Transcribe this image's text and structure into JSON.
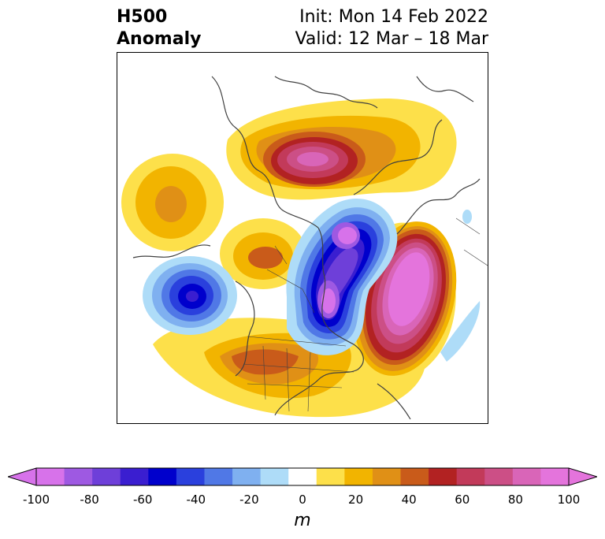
{
  "header": {
    "left_line1": "H500",
    "left_line2": "Anomaly",
    "right_line1": "Init: Mon 14 Feb 2022",
    "right_line2": "Valid: 12 Mar – 18 Mar"
  },
  "colorbar": {
    "unit_label": "m",
    "ticks": [
      "-100",
      "-80",
      "-60",
      "-40",
      "-20",
      "0",
      "20",
      "40",
      "60",
      "80",
      "100"
    ],
    "levels": [
      -100,
      -90,
      -80,
      -70,
      -60,
      -50,
      -40,
      -30,
      -20,
      -10,
      10,
      20,
      30,
      40,
      50,
      60,
      70,
      80,
      90,
      100
    ],
    "colors": [
      "#d772ea",
      "#9e59e2",
      "#6e3fd9",
      "#3a1ed0",
      "#0000cc",
      "#2a40dd",
      "#5078e6",
      "#7fb0f0",
      "#aedcf8",
      "#ffffff",
      "#fde04a",
      "#f2b400",
      "#e09016",
      "#c95b1a",
      "#b22222",
      "#c23a5a",
      "#cc4f86",
      "#d965b8",
      "#e474dc"
    ]
  },
  "anomalies": [
    {
      "name": "greenland-ridge",
      "sign": "positive",
      "peak": 75
    },
    {
      "name": "hudson-bay-trough",
      "sign": "negative",
      "peak": -100
    },
    {
      "name": "north-atlantic-ridge",
      "sign": "positive",
      "peak": 100
    },
    {
      "name": "gulf-of-alaska-trough",
      "sign": "negative",
      "peak": -70
    },
    {
      "name": "bering-ridge",
      "sign": "positive",
      "peak": 40
    },
    {
      "name": "southwest-us-ridge",
      "sign": "positive",
      "peak": 50
    },
    {
      "name": "alaska-ridge",
      "sign": "positive",
      "peak": 45
    }
  ]
}
